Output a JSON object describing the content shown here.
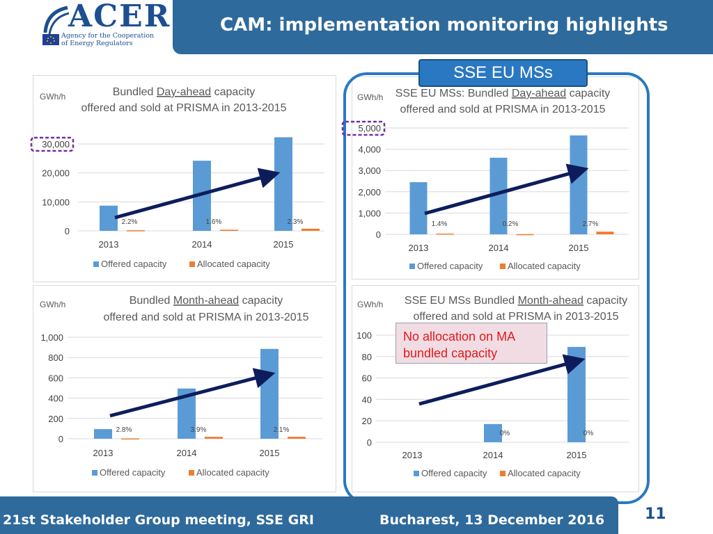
{
  "header": {
    "logo_name": "ACER",
    "logo_subtitle_line1": "Agency for the Cooperation",
    "logo_subtitle_line2": "of Energy Regulators",
    "title": "CAM: implementation monitoring highlights"
  },
  "sse_label": "SSE EU MSs",
  "note": "No allocation on MA bundled capacity",
  "footer": {
    "left": "21st Stakeholder Group meeting, SSE GRI",
    "right": "Bucharest, 13 December 2016",
    "page_number": "11"
  },
  "colors": {
    "offered": "#5b9bd5",
    "allocated": "#ed7d31",
    "trend_arrow": "#0d1d5c",
    "highlight_box": "#7030a0",
    "frame": "#2a78c2",
    "title_bar": "#2e6a9c"
  },
  "chart_data": [
    {
      "id": "da-eu",
      "type": "bar",
      "title_parts": [
        "Bundled ",
        "Day-ahead",
        " capacity"
      ],
      "title_line2": "offered and sold at PRISMA in 2013-2015",
      "ylabel": "GWh/h",
      "ylim": [
        0,
        30000
      ],
      "yticks": [
        "0",
        "10,000",
        "20,000",
        "30,000"
      ],
      "highlighted_tick": "30,000",
      "categories": [
        "2013",
        "2014",
        "2015"
      ],
      "series": [
        {
          "name": "Offered capacity",
          "values": [
            8700,
            24200,
            32300
          ]
        },
        {
          "name": "Allocated capacity",
          "values": [
            190,
            390,
            740
          ]
        }
      ],
      "data_labels": [
        "2.2%",
        "1.6%",
        "2.3%"
      ],
      "trend_arrow": true
    },
    {
      "id": "da-sse",
      "type": "bar",
      "title_parts": [
        "SSE EU MSs: Bundled ",
        "Day-ahead",
        " capacity"
      ],
      "title_line2": "offered and sold at PRISMA in 2013-2015",
      "ylabel": "GWh/h",
      "ylim": [
        0,
        5000
      ],
      "yticks": [
        "0",
        "1,000",
        "2,000",
        "3,000",
        "4,000",
        "5,000"
      ],
      "highlighted_tick": "5,000",
      "categories": [
        "2013",
        "2014",
        "2015"
      ],
      "series": [
        {
          "name": "Offered capacity",
          "values": [
            2450,
            3600,
            4650
          ]
        },
        {
          "name": "Allocated capacity",
          "values": [
            34,
            7,
            126
          ]
        }
      ],
      "data_labels": [
        "1.4%",
        "0.2%",
        "2.7%"
      ],
      "trend_arrow": true
    },
    {
      "id": "ma-eu",
      "type": "bar",
      "title_parts": [
        "Bundled ",
        "Month-ahead",
        " capacity"
      ],
      "title_line2": "offered and sold at PRISMA in 2013-2015",
      "ylabel": "GWh/h",
      "ylim": [
        0,
        1000
      ],
      "yticks": [
        "0",
        "200",
        "400",
        "600",
        "800",
        "1,000"
      ],
      "highlighted_tick": "",
      "categories": [
        "2013",
        "2014",
        "2015"
      ],
      "series": [
        {
          "name": "Offered capacity",
          "values": [
            95,
            495,
            885
          ]
        },
        {
          "name": "Allocated capacity",
          "values": [
            3,
            19,
            19
          ]
        }
      ],
      "data_labels": [
        "2.8%",
        "3.9%",
        "2.1%"
      ],
      "trend_arrow": true
    },
    {
      "id": "ma-sse",
      "type": "bar",
      "title_parts": [
        "SSE EU MSs Bundled ",
        "Month-ahead",
        " capacity"
      ],
      "title_line2": "offered and sold at PRISMA in 2013-2015",
      "ylabel": "GWh/h",
      "ylim": [
        0,
        100
      ],
      "yticks": [
        "0",
        "20",
        "40",
        "60",
        "80",
        "100"
      ],
      "highlighted_tick": "",
      "categories": [
        "2013",
        "2014",
        "2015"
      ],
      "series": [
        {
          "name": "Offered capacity",
          "values": [
            0,
            17,
            89
          ]
        },
        {
          "name": "Allocated capacity",
          "values": [
            0,
            0,
            0
          ]
        }
      ],
      "data_labels": [
        "",
        "0%",
        "0%"
      ],
      "trend_arrow": true
    }
  ]
}
